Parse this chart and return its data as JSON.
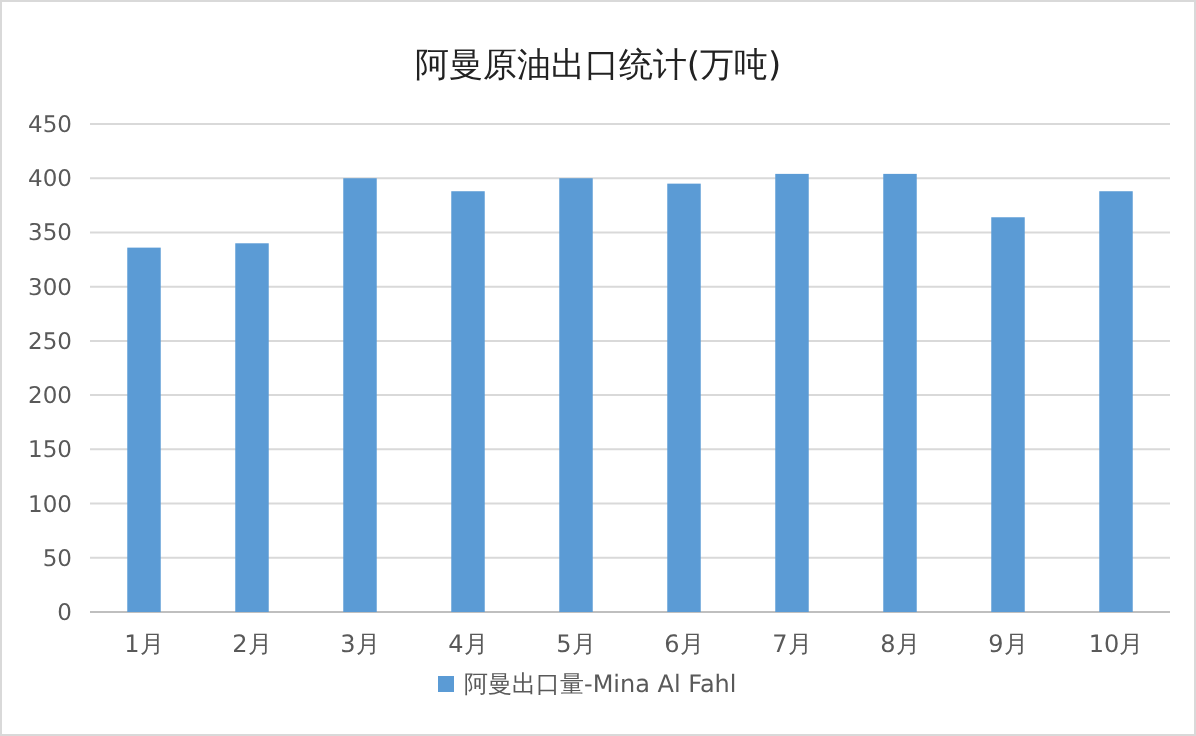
{
  "chart_data": {
    "type": "bar",
    "title": "阿曼原油出口统计(万吨)",
    "categories": [
      "1月",
      "2月",
      "3月",
      "4月",
      "5月",
      "6月",
      "7月",
      "8月",
      "9月",
      "10月"
    ],
    "series": [
      {
        "name": "阿曼出口量-Mina Al Fahl",
        "color": "#5b9bd5",
        "values": [
          336,
          340,
          400,
          388,
          400,
          395,
          404,
          404,
          364,
          388
        ]
      }
    ],
    "ylim": [
      0,
      450
    ],
    "yticks": [
      0,
      50,
      100,
      150,
      200,
      250,
      300,
      350,
      400,
      450
    ],
    "grid": "y",
    "legend": "bottom"
  }
}
